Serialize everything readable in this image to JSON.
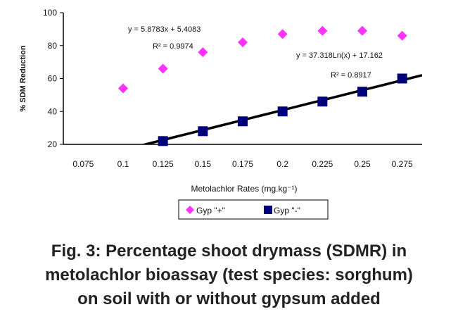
{
  "chart_data": {
    "type": "scatter",
    "x": [
      0.1,
      0.125,
      0.15,
      0.175,
      0.2,
      0.225,
      0.25,
      0.275
    ],
    "x_tick_labels": [
      "0.075",
      "0.1",
      "0.125",
      "0.15",
      "0.175",
      "0.2",
      "0.225",
      "0.25",
      "0.275"
    ],
    "y_ticks": [
      20,
      40,
      60,
      80,
      100
    ],
    "ylim": [
      20,
      100
    ],
    "xlim": [
      0.0625,
      0.2875
    ],
    "xlabel": "Metolachlor Rates (mg.kg⁻¹)",
    "ylabel": "% SDM Reduction",
    "legend_position": "bottom",
    "series": [
      {
        "name": "Gyp \"+\"",
        "marker": "diamond",
        "color": "#ff33ff",
        "points": [
          [
            0.1,
            54
          ],
          [
            0.125,
            66
          ],
          [
            0.15,
            76
          ],
          [
            0.175,
            82
          ],
          [
            0.2,
            87
          ],
          [
            0.225,
            89
          ],
          [
            0.25,
            89
          ],
          [
            0.275,
            86
          ]
        ],
        "trendline": {
          "kind": "log",
          "a": 37.318,
          "b": 17.162
        },
        "equation": "y = 37.318Ln(x) + 17.162",
        "r2": "R² = 0.8917"
      },
      {
        "name": "Gyp \"-\"",
        "marker": "square",
        "color": "#00007a",
        "points": [
          [
            0.125,
            22
          ],
          [
            0.15,
            28
          ],
          [
            0.175,
            34
          ],
          [
            0.2,
            40
          ],
          [
            0.225,
            46
          ],
          [
            0.25,
            52
          ],
          [
            0.275,
            60
          ]
        ],
        "trendline": {
          "kind": "linear",
          "m": 5.8783,
          "c": 5.4083
        },
        "equation": "y = 5.8783x + 5.4083",
        "r2": "R² = 0.9974"
      }
    ]
  },
  "caption": {
    "line1": "Fig. 3:  Percentage shoot drymass (SDMR) in",
    "line2": "metolachlor bioassay (test species: sorghum)",
    "line3": "on soil with or without gypsum added"
  }
}
